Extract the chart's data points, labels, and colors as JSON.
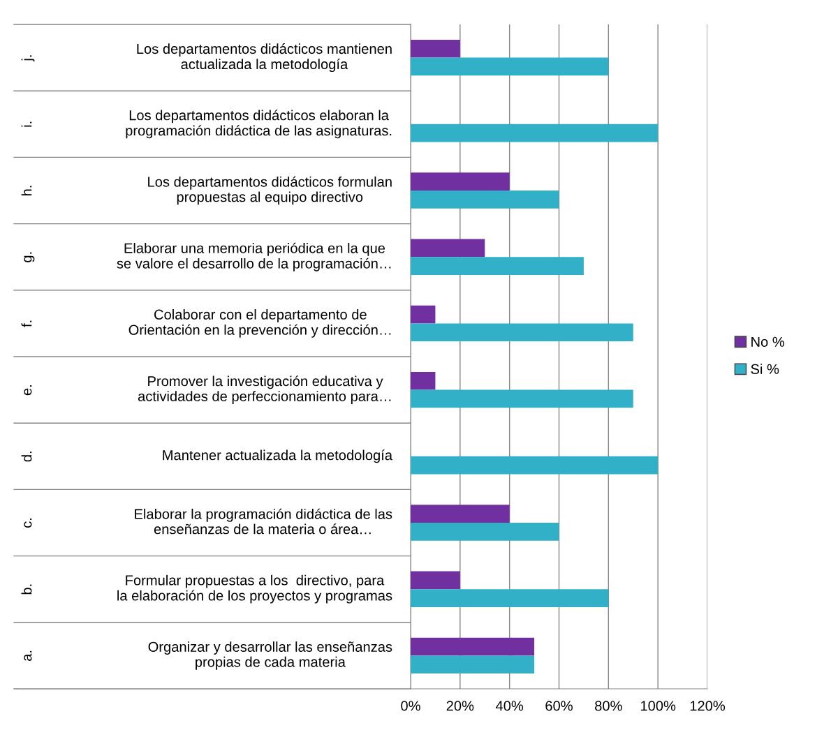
{
  "chart_data": {
    "type": "bar",
    "orientation": "horizontal",
    "categories": [
      "Los departamentos didácticos mantienen\nactualizada la metodología",
      "Los departamentos didácticos elaboran la\nprogramación didáctica de las asignaturas.",
      "Los departamentos didácticos formulan\npropuestas al equipo directivo",
      "Elaborar una memoria periódica en la que\nse valore el desarrollo de la programación…",
      "Colaborar con el departamento de\nOrientación en la prevención y dirección…",
      "Promover la investigación educativa y\nactividades de perfeccionamiento para…",
      "Mantener actualizada la metodología",
      "Elaborar la programación didáctica de las\nenseñanzas de la materia o área…",
      "Formular propuestas a los  directivo, para\nla elaboración de los proyectos y programas",
      "Organizar y desarrollar las enseñanzas\npropias de cada materia"
    ],
    "annotations": [
      "j.",
      "i.",
      "h.",
      "g.",
      "f.",
      "e.",
      "d.",
      "c.",
      "b.",
      "a."
    ],
    "series": [
      {
        "name": "No %",
        "color": "#7030a0",
        "values": [
          20,
          0,
          40,
          30,
          10,
          10,
          0,
          40,
          20,
          50
        ]
      },
      {
        "name": "Si %",
        "color": "#31b0c8",
        "values": [
          80,
          100,
          60,
          70,
          90,
          90,
          100,
          60,
          80,
          50
        ]
      }
    ],
    "xlim": [
      0,
      120
    ],
    "xticks": [
      {
        "value": 0,
        "label": "0%"
      },
      {
        "value": 20,
        "label": "20%"
      },
      {
        "value": 40,
        "label": "40%"
      },
      {
        "value": 60,
        "label": "60%"
      },
      {
        "value": 80,
        "label": "80%"
      },
      {
        "value": 100,
        "label": "100%"
      },
      {
        "value": 120,
        "label": "120%"
      }
    ],
    "grid": "x",
    "legend": "right"
  }
}
